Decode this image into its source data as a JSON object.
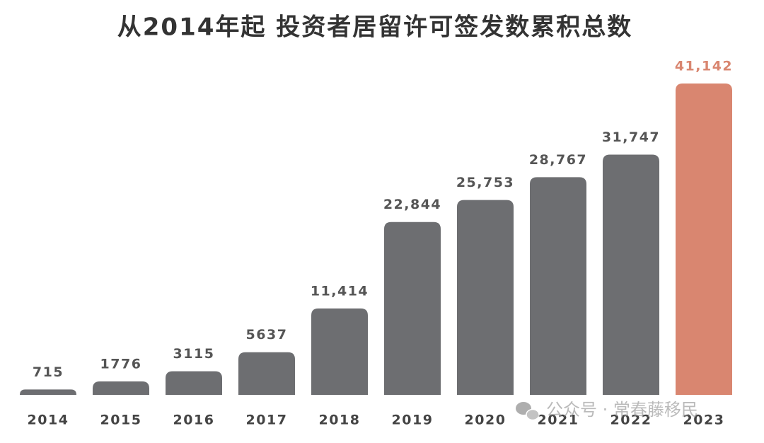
{
  "chart_data": {
    "type": "bar",
    "title": "从2014年起 投资者居留许可签发数累积总数",
    "categories": [
      "2014",
      "2015",
      "2016",
      "2017",
      "2018",
      "2019",
      "2020",
      "2021",
      "2022",
      "2023"
    ],
    "values": [
      715,
      1776,
      3115,
      5637,
      11414,
      22844,
      25753,
      28767,
      31747,
      41142
    ],
    "value_labels": [
      "715",
      "1776",
      "3115",
      "5637",
      "11,414",
      "22,844",
      "25,753",
      "28,767",
      "31,747",
      "41,142"
    ],
    "colors": [
      "#6d6e71",
      "#6d6e71",
      "#6d6e71",
      "#6d6e71",
      "#6d6e71",
      "#6d6e71",
      "#6d6e71",
      "#6d6e71",
      "#6d6e71",
      "#d98670"
    ],
    "watermark": "公众号 · 常春藤移民"
  }
}
